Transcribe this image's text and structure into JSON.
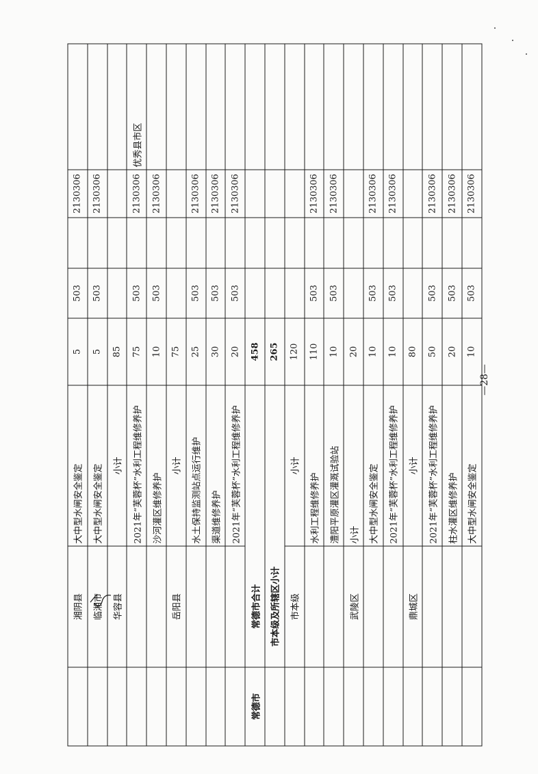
{
  "rows": [
    {
      "city": "",
      "county": "湘阴县",
      "project": "大中型水闸安全鉴定",
      "amount": "5",
      "code1": "503",
      "code2": "",
      "code3": "2130306",
      "remark": ""
    },
    {
      "city": "",
      "county": "临湘市",
      "project": "大中型水闸安全鉴定",
      "amount": "5",
      "code1": "503",
      "code2": "",
      "code3": "2130306",
      "remark": ""
    },
    {
      "city": "",
      "county": "华容县",
      "project": "小计",
      "amount": "85",
      "code1": "",
      "code2": "",
      "code3": "",
      "remark": ""
    },
    {
      "city": "",
      "county": "",
      "project": "2021年“芙蓉杯”水利工程维修养护",
      "amount": "75",
      "code1": "503",
      "code2": "",
      "code3": "2130306",
      "remark": "优秀县市区"
    },
    {
      "city": "",
      "county": "",
      "project": "沙河灌区维修养护",
      "amount": "10",
      "code1": "503",
      "code2": "",
      "code3": "2130306",
      "remark": ""
    },
    {
      "city": "",
      "county": "岳阳县",
      "project": "小计",
      "amount": "75",
      "code1": "",
      "code2": "",
      "code3": "",
      "remark": ""
    },
    {
      "city": "",
      "county": "",
      "project": "水土保持监测站点运行维护",
      "amount": "25",
      "code1": "503",
      "code2": "",
      "code3": "2130306",
      "remark": ""
    },
    {
      "city": "",
      "county": "",
      "project": "渠道维修养护",
      "amount": "30",
      "code1": "503",
      "code2": "",
      "code3": "2130306",
      "remark": ""
    },
    {
      "city": "",
      "county": "",
      "project": "2021年“芙蓉杯”水利工程维修养护",
      "amount": "20",
      "code1": "503",
      "code2": "",
      "code3": "2130306",
      "remark": ""
    },
    {
      "city": "常德市",
      "county": "常德市合计",
      "project": "",
      "amount": "458",
      "code1": "",
      "code2": "",
      "code3": "",
      "remark": ""
    },
    {
      "city": "",
      "county": "市本级及所辖区小计",
      "project": "",
      "amount": "265",
      "code1": "",
      "code2": "",
      "code3": "",
      "remark": ""
    },
    {
      "city": "",
      "county": "市本级",
      "project": "小计",
      "amount": "120",
      "code1": "",
      "code2": "",
      "code3": "",
      "remark": ""
    },
    {
      "city": "",
      "county": "",
      "project": "水利工程维修养护",
      "amount": "110",
      "code1": "503",
      "code2": "",
      "code3": "2130306",
      "remark": ""
    },
    {
      "city": "",
      "county": "",
      "project": "澧阳平原灌区灌溉试验站",
      "amount": "10",
      "code1": "503",
      "code2": "",
      "code3": "2130306",
      "remark": ""
    },
    {
      "city": "",
      "county": "武陵区",
      "project": "小计",
      "amount": "20",
      "code1": "",
      "code2": "",
      "code3": "",
      "remark": ""
    },
    {
      "city": "",
      "county": "",
      "project": "大中型水闸安全鉴定",
      "amount": "10",
      "code1": "503",
      "code2": "",
      "code3": "2130306",
      "remark": ""
    },
    {
      "city": "",
      "county": "",
      "project": "2021年“芙蓉杯”水利工程维修养护",
      "amount": "10",
      "code1": "503",
      "code2": "",
      "code3": "2130306",
      "remark": ""
    },
    {
      "city": "",
      "county": "鼎城区",
      "project": "小计",
      "amount": "80",
      "code1": "",
      "code2": "",
      "code3": "",
      "remark": ""
    },
    {
      "city": "",
      "county": "",
      "project": "2021年“芙蓉杯”水利工程维修养护",
      "amount": "50",
      "code1": "503",
      "code2": "",
      "code3": "2130306",
      "remark": ""
    },
    {
      "city": "",
      "county": "",
      "project": "柱水灌区维修养护",
      "amount": "20",
      "code1": "503",
      "code2": "",
      "code3": "2130306",
      "remark": ""
    },
    {
      "city": "",
      "county": "",
      "project": "大中型水闸安全鉴定",
      "amount": "10",
      "code1": "503",
      "code2": "",
      "code3": "2130306",
      "remark": ""
    }
  ],
  "page_number": "—28—"
}
